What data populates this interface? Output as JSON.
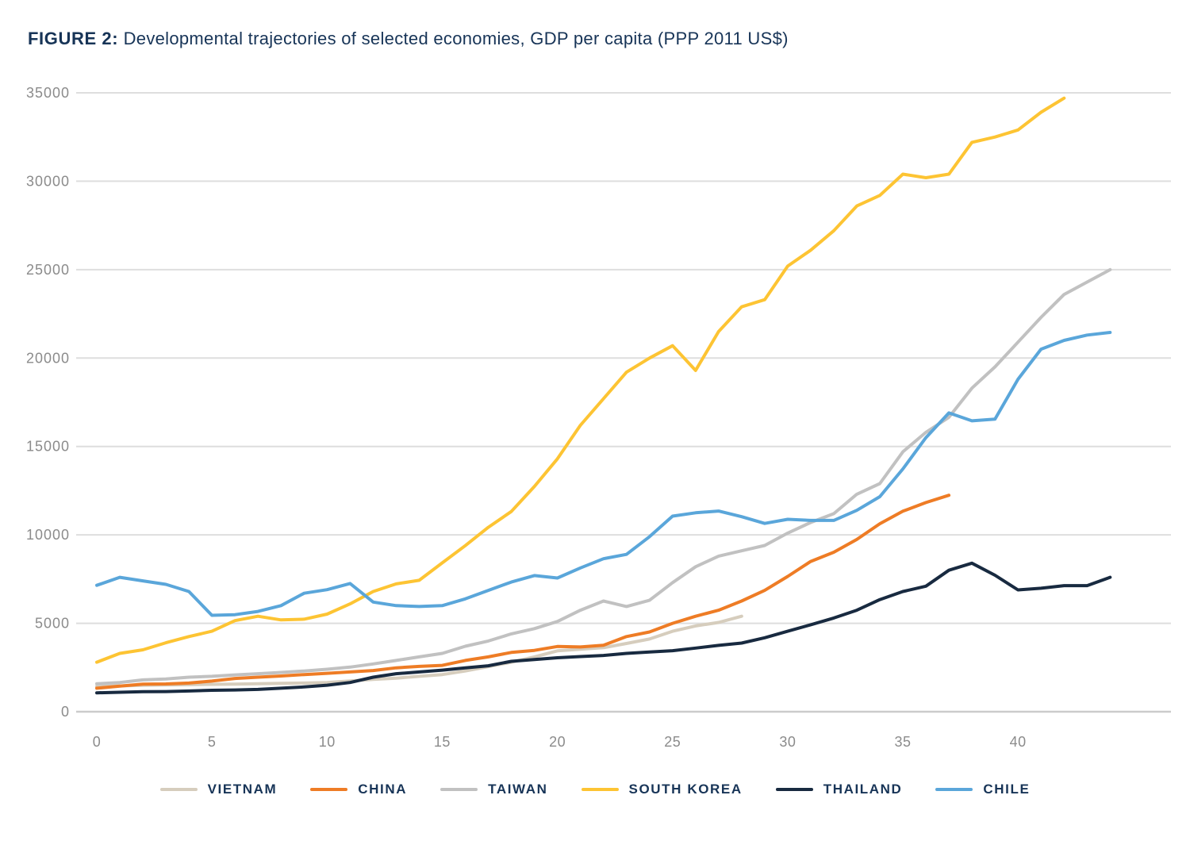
{
  "figure": {
    "title_label": "FIGURE 2:",
    "title_text": "Developmental trajectories of selected economies, GDP per capita (PPP 2011 US$)"
  },
  "chart_data": {
    "type": "line",
    "title": "Developmental trajectories of selected economies, GDP per capita (PPP 2011 US$)",
    "xlabel": "",
    "ylabel": "",
    "xlim": [
      0,
      46.5
    ],
    "ylim": [
      0,
      35000
    ],
    "x_ticks": [
      0,
      5,
      10,
      15,
      20,
      25,
      30,
      35,
      40
    ],
    "y_ticks": [
      0,
      5000,
      10000,
      15000,
      20000,
      25000,
      30000,
      35000
    ],
    "grid": "horizontal-only",
    "legend_position": "bottom",
    "x_unit": "years",
    "series": [
      {
        "name": "VIETNAM",
        "color": "#d6cdbd",
        "start_x": 0,
        "values": [
          1430,
          1460,
          1500,
          1510,
          1530,
          1550,
          1560,
          1580,
          1600,
          1620,
          1650,
          1740,
          1830,
          1900,
          2000,
          2100,
          2300,
          2550,
          2800,
          3100,
          3440,
          3530,
          3620,
          3860,
          4110,
          4550,
          4850,
          5050,
          5400
        ]
      },
      {
        "name": "CHINA",
        "color": "#ee7c25",
        "start_x": 0,
        "values": [
          1330,
          1450,
          1560,
          1570,
          1620,
          1730,
          1880,
          1950,
          2020,
          2100,
          2170,
          2250,
          2330,
          2480,
          2560,
          2620,
          2900,
          3100,
          3350,
          3470,
          3690,
          3660,
          3760,
          4250,
          4510,
          5000,
          5400,
          5740,
          6260,
          6860,
          7650,
          8500,
          9020,
          9740,
          10630,
          11340,
          11830,
          12240
        ]
      },
      {
        "name": "TAIWAN",
        "color": "#c1c1c1",
        "start_x": 0,
        "values": [
          1580,
          1650,
          1800,
          1850,
          1950,
          2000,
          2080,
          2150,
          2220,
          2300,
          2400,
          2520,
          2700,
          2900,
          3100,
          3300,
          3700,
          4000,
          4400,
          4700,
          5100,
          5740,
          6260,
          5950,
          6300,
          7300,
          8200,
          8800,
          9100,
          9400,
          10100,
          10700,
          11200,
          12300,
          12900,
          14700,
          15800,
          16650,
          18300,
          19500,
          20900,
          22300,
          23600,
          24300,
          25000
        ]
      },
      {
        "name": "SOUTH KOREA",
        "color": "#fdc433",
        "start_x": 0,
        "values": [
          2800,
          3300,
          3500,
          3900,
          4250,
          4550,
          5150,
          5400,
          5190,
          5230,
          5520,
          6100,
          6800,
          7230,
          7430,
          8420,
          9390,
          10430,
          11320,
          12740,
          14300,
          16200,
          17700,
          19200,
          20000,
          20700,
          19300,
          21500,
          22900,
          23300,
          25200,
          26100,
          27200,
          28600,
          29200,
          30400,
          30200,
          30400,
          32200,
          32500,
          32900,
          33900,
          34700
        ]
      },
      {
        "name": "THAILAND",
        "color": "#182a40",
        "start_x": 0,
        "values": [
          1070,
          1100,
          1130,
          1140,
          1170,
          1210,
          1230,
          1260,
          1330,
          1400,
          1500,
          1650,
          1950,
          2150,
          2250,
          2350,
          2480,
          2600,
          2850,
          2950,
          3050,
          3120,
          3180,
          3300,
          3380,
          3450,
          3600,
          3750,
          3880,
          4180,
          4550,
          4920,
          5300,
          5740,
          6340,
          6800,
          7100,
          8000,
          8400,
          7720,
          6890,
          6980,
          7130,
          7130,
          7600
        ]
      },
      {
        "name": "CHILE",
        "color": "#5aa6da",
        "start_x": 0,
        "values": [
          7150,
          7600,
          7400,
          7200,
          6800,
          5450,
          5490,
          5670,
          6000,
          6700,
          6900,
          7250,
          6200,
          6000,
          5950,
          6000,
          6380,
          6860,
          7330,
          7700,
          7560,
          8130,
          8650,
          8900,
          9900,
          11060,
          11250,
          11350,
          11030,
          10650,
          10880,
          10820,
          10820,
          11390,
          12160,
          13730,
          15500,
          16900,
          16450,
          16550,
          18800,
          20500,
          21000,
          21300,
          21450
        ]
      }
    ]
  }
}
